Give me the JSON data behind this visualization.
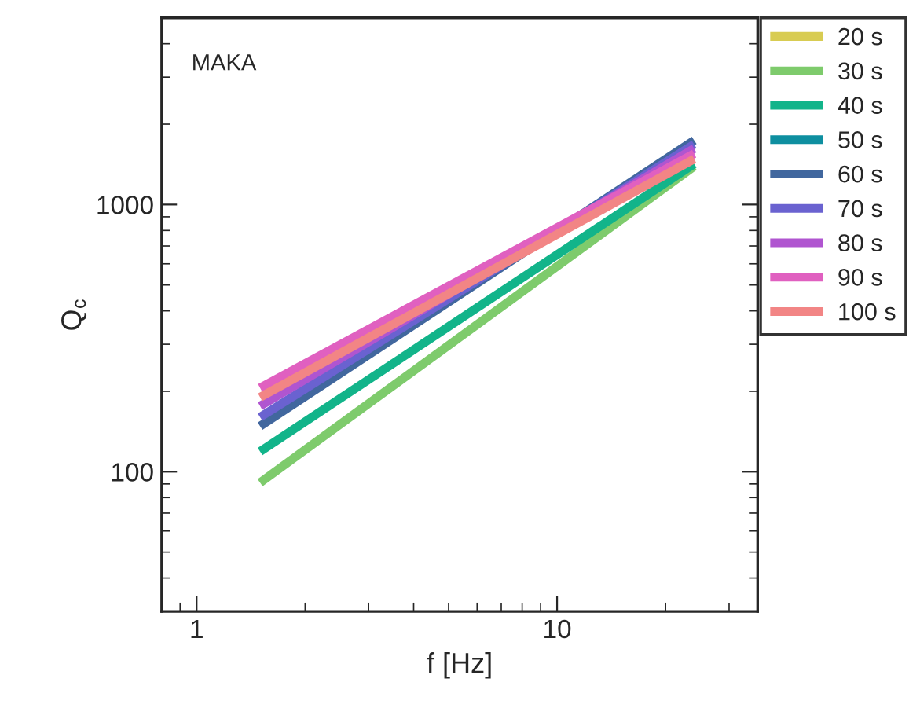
{
  "chart_data": {
    "type": "line",
    "xlabel": "f [Hz]",
    "ylabel": "Q$_{c}$",
    "annotations": [
      "MAKA"
    ],
    "log": "xy",
    "x": [
      1.5,
      24
    ],
    "xlim": [
      0.8,
      36
    ],
    "xticks": [
      1,
      10
    ],
    "ylim": [
      30,
      5000
    ],
    "yticks": [
      100,
      1000
    ],
    "grid": false,
    "legend": "top right",
    "line_style": "solid",
    "marker": "none",
    "series": [
      {
        "name": "20 s",
        "color": "#d8cc52",
        "values": [
          null,
          null
        ]
      },
      {
        "name": "30 s",
        "color": "#7ecb6c",
        "values": [
          91,
          1390
        ]
      },
      {
        "name": "40 s",
        "color": "#12b48a",
        "values": [
          119,
          1420
        ]
      },
      {
        "name": "50 s",
        "color": "#0e8fa0",
        "values": [
          null,
          null
        ]
      },
      {
        "name": "60 s",
        "color": "#41679e",
        "values": [
          148,
          1740
        ]
      },
      {
        "name": "70 s",
        "color": "#6a62d0",
        "values": [
          160,
          1680
        ]
      },
      {
        "name": "80 s",
        "color": "#b055d0",
        "values": [
          176,
          1620
        ]
      },
      {
        "name": "90 s",
        "color": "#e060c0",
        "values": [
          206,
          1550
        ]
      },
      {
        "name": "100 s",
        "color": "#f28585",
        "values": [
          190,
          1480
        ]
      }
    ]
  }
}
